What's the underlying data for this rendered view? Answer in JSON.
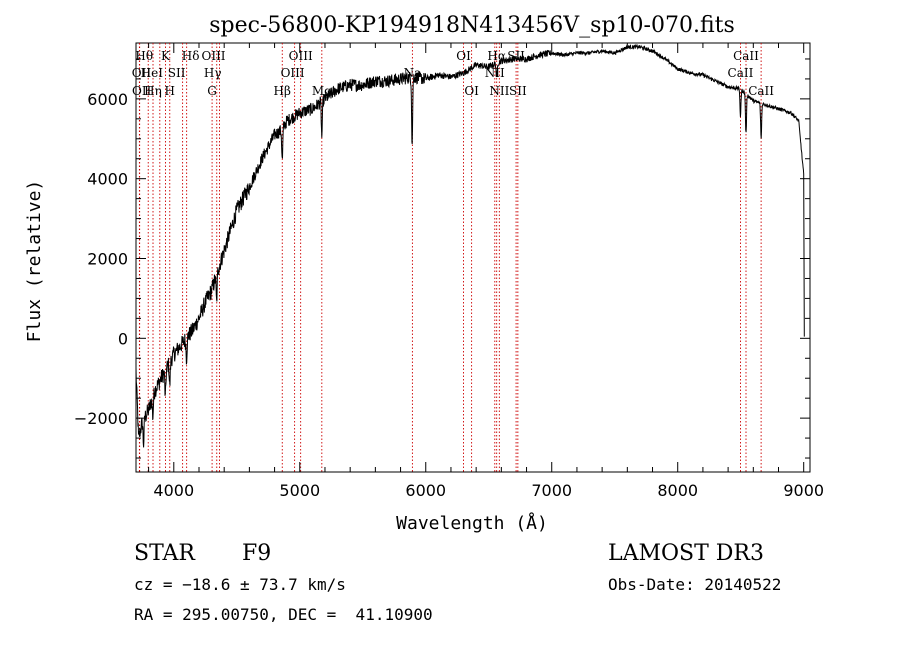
{
  "chart_data": {
    "type": "line",
    "title": "spec-56800-KP194918N413456V_sp10-070.fits",
    "xlabel": "Wavelength (Å)",
    "ylabel": "Flux (relative)",
    "xlim": [
      3700,
      9050
    ],
    "ylim": [
      -3350,
      7400
    ],
    "xticks": [
      4000,
      5000,
      6000,
      7000,
      8000,
      9000
    ],
    "xtick_labels": [
      "4000",
      "5000",
      "6000",
      "7000",
      "8000",
      "9000"
    ],
    "yticks": [
      -2000,
      0,
      2000,
      4000,
      6000
    ],
    "ytick_labels": [
      "−2000",
      "0",
      "2000",
      "4000",
      "6000"
    ],
    "spectrum_anchors": {
      "x": [
        3700,
        3720,
        3750,
        3800,
        3850,
        3900,
        3950,
        4000,
        4050,
        4100,
        4150,
        4200,
        4250,
        4300,
        4350,
        4400,
        4450,
        4500,
        4600,
        4700,
        4800,
        4850,
        4900,
        4950,
        5000,
        5100,
        5200,
        5300,
        5400,
        5500,
        5600,
        5700,
        5800,
        5900,
        6000,
        6100,
        6200,
        6300,
        6400,
        6500,
        6600,
        6700,
        6800,
        6900,
        7000,
        7100,
        7200,
        7300,
        7400,
        7500,
        7600,
        7700,
        7800,
        7900,
        8000,
        8100,
        8200,
        8300,
        8400,
        8500,
        8600,
        8700,
        8800,
        8900,
        8960,
        9000,
        9005
      ],
      "y": [
        -800,
        -2500,
        -2100,
        -1800,
        -1300,
        -1000,
        -700,
        -400,
        -200,
        0,
        200,
        500,
        900,
        1200,
        1700,
        2200,
        2700,
        3200,
        3800,
        4500,
        5100,
        5200,
        5450,
        5550,
        5650,
        5750,
        6000,
        6250,
        6350,
        6350,
        6450,
        6450,
        6500,
        6550,
        6500,
        6600,
        6550,
        6650,
        6850,
        6800,
        6950,
        7000,
        7000,
        7100,
        7150,
        7100,
        7150,
        7150,
        7200,
        7150,
        7300,
        7300,
        7200,
        7000,
        6750,
        6650,
        6600,
        6450,
        6300,
        6250,
        5950,
        5850,
        5750,
        5650,
        5450,
        4100,
        0
      ]
    },
    "absorption_features": [
      {
        "wavelength": 3760,
        "depth": 600
      },
      {
        "wavelength": 3834,
        "depth": 500
      },
      {
        "wavelength": 3933,
        "depth": 700
      },
      {
        "wavelength": 3968,
        "depth": 600
      },
      {
        "wavelength": 4101,
        "depth": 500
      },
      {
        "wavelength": 4340,
        "depth": 700
      },
      {
        "wavelength": 4861,
        "depth": 800
      },
      {
        "wavelength": 5175,
        "depth": 900
      },
      {
        "wavelength": 5892,
        "depth": 1700
      },
      {
        "wavelength": 6563,
        "depth": 400
      },
      {
        "wavelength": 8498,
        "depth": 700
      },
      {
        "wavelength": 8542,
        "depth": 1000
      },
      {
        "wavelength": 8662,
        "depth": 900
      }
    ],
    "lines": [
      {
        "label": "Hθ",
        "wavelength": 3797,
        "row": 0,
        "xoff": -4
      },
      {
        "label": "OII",
        "wavelength": 3727,
        "row": 1,
        "xoff": 2
      },
      {
        "label": "OII",
        "wavelength": 3729,
        "row": 2,
        "xoff": 2
      },
      {
        "label": "Hη",
        "wavelength": 3835,
        "row": 2,
        "xoff": 0
      },
      {
        "label": "HeI",
        "wavelength": 3889,
        "row": 1,
        "xoff": -8
      },
      {
        "label": "K",
        "wavelength": 3934,
        "row": 0,
        "xoff": 0
      },
      {
        "label": "H",
        "wavelength": 3968,
        "row": 2,
        "xoff": 0
      },
      {
        "label": "SII",
        "wavelength": 4070,
        "row": 1,
        "xoff": -6
      },
      {
        "label": "Hδ",
        "wavelength": 4102,
        "row": 0,
        "xoff": 4
      },
      {
        "label": "G",
        "wavelength": 4304,
        "row": 2,
        "xoff": 0
      },
      {
        "label": "Hγ",
        "wavelength": 4341,
        "row": 1,
        "xoff": -4
      },
      {
        "label": "OIII",
        "wavelength": 4363,
        "row": 0,
        "xoff": -6
      },
      {
        "label": "Hβ",
        "wavelength": 4861,
        "row": 2,
        "xoff": 0
      },
      {
        "label": "OIII",
        "wavelength": 4959,
        "row": 1,
        "xoff": -2
      },
      {
        "label": "OIII",
        "wavelength": 5007,
        "row": 0,
        "xoff": 0
      },
      {
        "label": "Mg",
        "wavelength": 5175,
        "row": 2,
        "xoff": 0
      },
      {
        "label": "Na",
        "wavelength": 5894,
        "row": 1,
        "xoff": 0
      },
      {
        "label": "OI",
        "wavelength": 6300,
        "row": 0,
        "xoff": 0
      },
      {
        "label": "OI",
        "wavelength": 6364,
        "row": 2,
        "xoff": 0
      },
      {
        "label": "NII",
        "wavelength": 6548,
        "row": 1,
        "xoff": 0
      },
      {
        "label": "Hα",
        "wavelength": 6563,
        "row": 0,
        "xoff": 0
      },
      {
        "label": "NII",
        "wavelength": 6584,
        "row": 2,
        "xoff": 0
      },
      {
        "label": "SII",
        "wavelength": 6717,
        "row": 0,
        "xoff": 0
      },
      {
        "label": "SII",
        "wavelength": 6731,
        "row": 2,
        "xoff": 0
      },
      {
        "label": "CaII",
        "wavelength": 8498,
        "row": 1,
        "xoff": 0
      },
      {
        "label": "CaII",
        "wavelength": 8542,
        "row": 0,
        "xoff": 0
      },
      {
        "label": "CaII",
        "wavelength": 8662,
        "row": 2,
        "xoff": 0
      }
    ],
    "line_color": "#cc0000",
    "curve_color": "#000000"
  },
  "info": {
    "object_class": "STAR",
    "subclass": "F9",
    "survey": "LAMOST DR3",
    "redshift": "cz = −18.6 ± 73.7 km/s",
    "obs_date": "Obs-Date: 20140522",
    "coords": "RA = 295.00750, DEC =  41.10900"
  }
}
